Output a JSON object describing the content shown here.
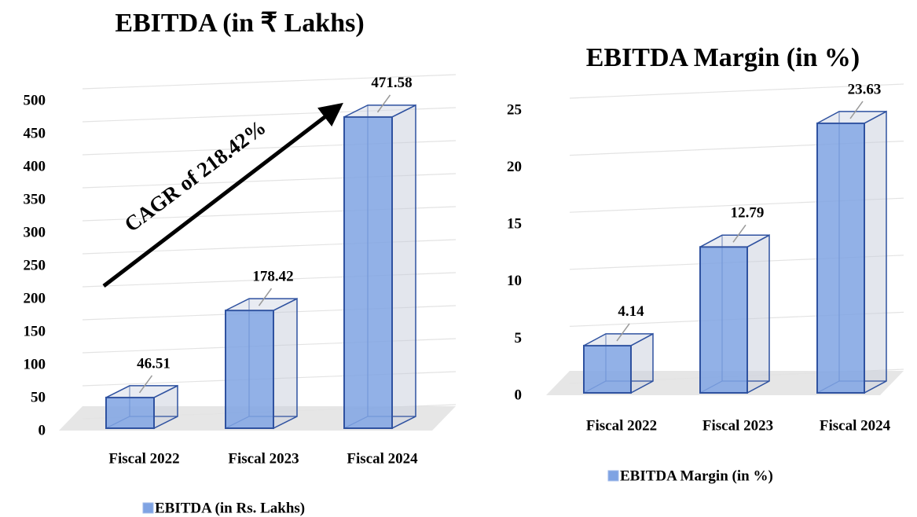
{
  "chart_data": [
    {
      "type": "bar",
      "title": "EBITDA (in ₹ Lakhs)",
      "categories": [
        "Fiscal 2022",
        "Fiscal 2023",
        "Fiscal 2024"
      ],
      "series": [
        {
          "name": "EBITDA (in Rs. Lakhs)",
          "color": "#7fa3e3",
          "values": [
            46.51,
            178.42,
            471.58
          ]
        }
      ],
      "ylim": [
        0,
        500
      ],
      "yticks": [
        0,
        50,
        100,
        150,
        200,
        250,
        300,
        350,
        400,
        450,
        500
      ],
      "annotation": "CAGR of 218.42%",
      "grid": true,
      "legend": "bottom"
    },
    {
      "type": "bar",
      "title": "EBITDA Margin (in %)",
      "categories": [
        "Fiscal 2022",
        "Fiscal 2023",
        "Fiscal 2024"
      ],
      "series": [
        {
          "name": "EBITDA Margin (in %)",
          "color": "#7fa3e3",
          "values": [
            4.14,
            12.79,
            23.63
          ]
        }
      ],
      "ylim": [
        0,
        25
      ],
      "yticks": [
        0,
        5,
        10,
        15,
        20,
        25
      ],
      "grid": true,
      "legend": "bottom"
    }
  ]
}
